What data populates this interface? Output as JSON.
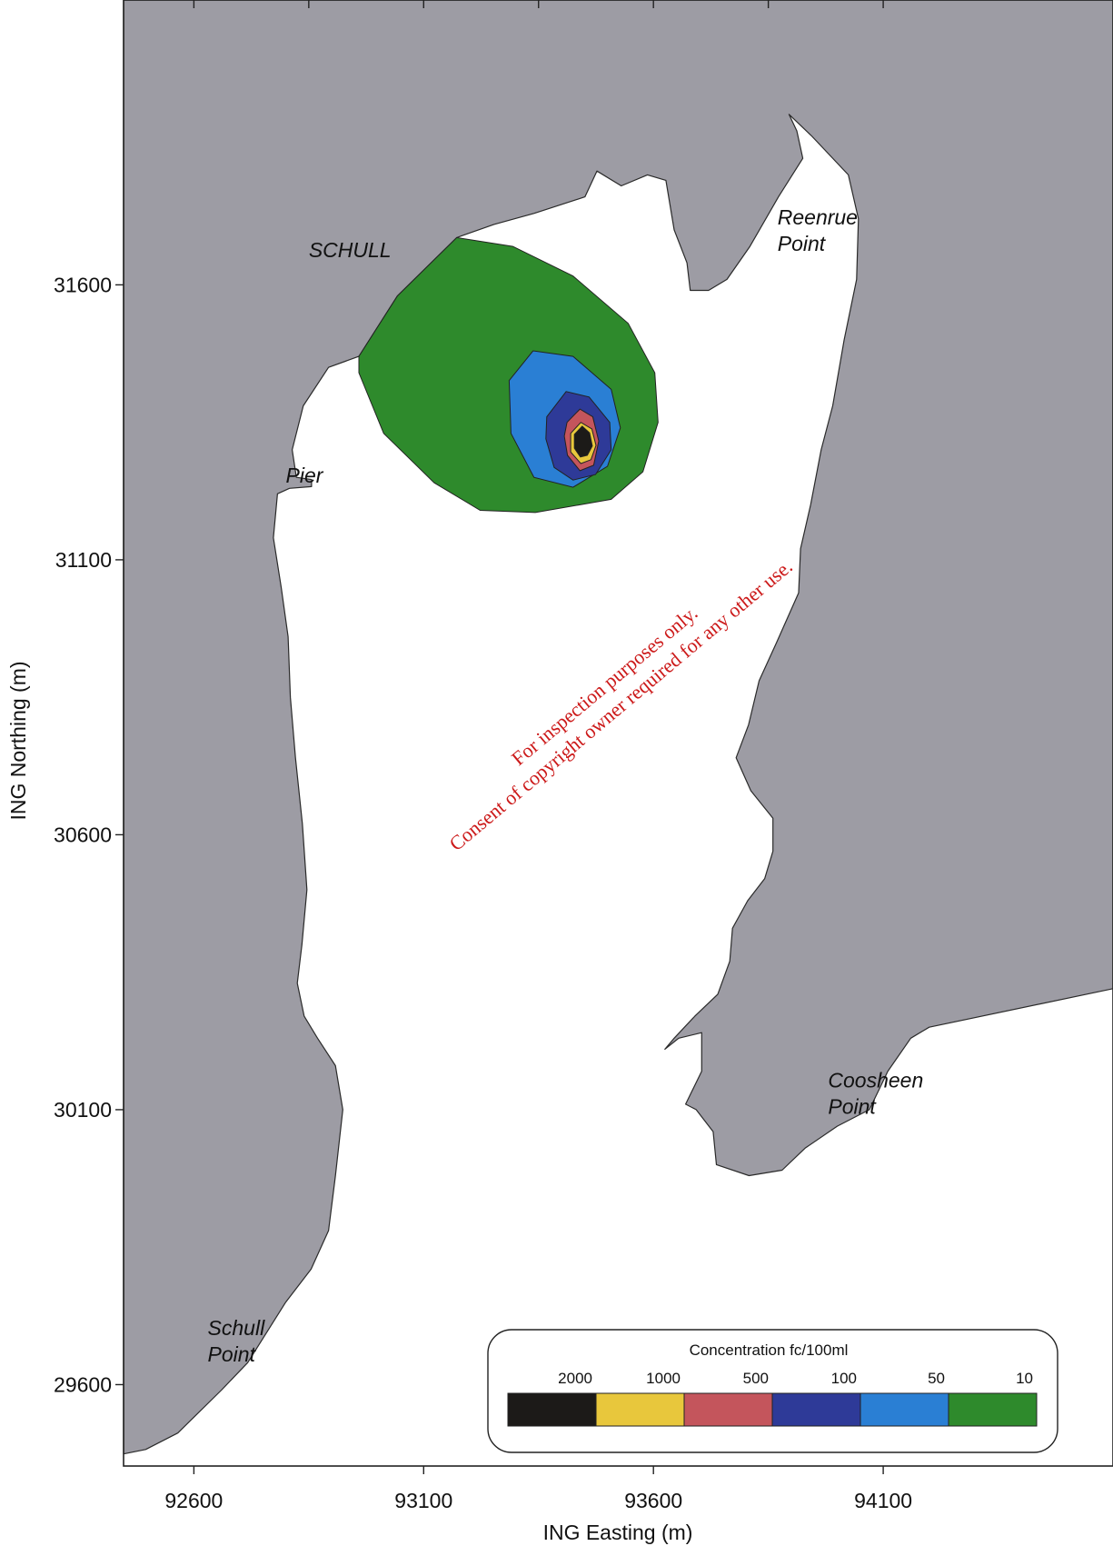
{
  "chart_data": {
    "type": "contour-map",
    "xlabel": "ING Easting (m)",
    "ylabel": "ING Northing (m)",
    "x_ticks": [
      92600,
      93100,
      93600,
      94100
    ],
    "y_ticks": [
      31600,
      31100,
      30600,
      30100,
      29600
    ],
    "x_tick_labels": [
      "92600",
      "93100",
      "93600",
      "94100"
    ],
    "y_tick_labels": [
      "31600",
      "31100",
      "30600",
      "30100",
      "29600"
    ],
    "xlim": [
      92447,
      94600
    ],
    "ylim": [
      29452,
      32118
    ],
    "land_color": "#9d9ca4",
    "water_color": "#ffffff",
    "places": [
      {
        "lines": [
          "SCHULL"
        ],
        "x": 92850,
        "y": 31650
      },
      {
        "lines": [
          "Reenrue",
          "Point"
        ],
        "x": 93870,
        "y": 31710
      },
      {
        "lines": [
          "Pier"
        ],
        "x": 92800,
        "y": 31240
      },
      {
        "lines": [
          "Coosheen",
          "Point"
        ],
        "x": 93980,
        "y": 30140
      },
      {
        "lines": [
          "Schull",
          "Point"
        ],
        "x": 92630,
        "y": 29690
      }
    ],
    "legend": {
      "title": "Concentration fc/100ml",
      "levels": [
        {
          "label": "2000",
          "color": "#1c1a18"
        },
        {
          "label": "1000",
          "color": "#e8c73c"
        },
        {
          "label": "500",
          "color": "#c4555c"
        },
        {
          "label": "100",
          "color": "#2e3a98"
        },
        {
          "label": "50",
          "color": "#2a7fd4"
        },
        {
          "label": "10",
          "color": "#2e8a2c"
        }
      ]
    },
    "contours": [
      {
        "level": "10",
        "color": "#2e8a2c",
        "points": [
          [
            92959,
            31470
          ],
          [
            93043,
            31580
          ],
          [
            93172,
            31686
          ],
          [
            93294,
            31670
          ],
          [
            93425,
            31616
          ],
          [
            93545,
            31530
          ],
          [
            93603,
            31440
          ],
          [
            93610,
            31350
          ],
          [
            93577,
            31260
          ],
          [
            93508,
            31210
          ],
          [
            93343,
            31186
          ],
          [
            93223,
            31190
          ],
          [
            93123,
            31240
          ],
          [
            93013,
            31330
          ],
          [
            92959,
            31440
          ]
        ]
      },
      {
        "level": "50",
        "color": "#2a7fd4",
        "points": [
          [
            93286,
            31426
          ],
          [
            93338,
            31480
          ],
          [
            93425,
            31470
          ],
          [
            93508,
            31410
          ],
          [
            93528,
            31340
          ],
          [
            93500,
            31270
          ],
          [
            93425,
            31232
          ],
          [
            93340,
            31250
          ],
          [
            93290,
            31330
          ]
        ]
      },
      {
        "level": "100",
        "color": "#2e3a98",
        "points": [
          [
            93368,
            31360
          ],
          [
            93410,
            31406
          ],
          [
            93460,
            31396
          ],
          [
            93505,
            31350
          ],
          [
            93508,
            31300
          ],
          [
            93474,
            31255
          ],
          [
            93425,
            31245
          ],
          [
            93384,
            31268
          ],
          [
            93366,
            31320
          ]
        ]
      },
      {
        "level": "500",
        "color": "#c4555c",
        "points": [
          [
            93412,
            31350
          ],
          [
            93440,
            31374
          ],
          [
            93468,
            31360
          ],
          [
            93481,
            31316
          ],
          [
            93470,
            31272
          ],
          [
            93440,
            31262
          ],
          [
            93413,
            31290
          ],
          [
            93406,
            31325
          ]
        ]
      },
      {
        "level": "1000",
        "color": "#e8c73c",
        "points": [
          [
            93420,
            31330
          ],
          [
            93442,
            31350
          ],
          [
            93466,
            31338
          ],
          [
            93475,
            31308
          ],
          [
            93464,
            31282
          ],
          [
            93442,
            31275
          ],
          [
            93420,
            31296
          ]
        ]
      },
      {
        "level": "2000",
        "color": "#1c1a18",
        "points": [
          [
            93428,
            31328
          ],
          [
            93445,
            31343
          ],
          [
            93461,
            31331
          ],
          [
            93467,
            31307
          ],
          [
            93456,
            31290
          ],
          [
            93441,
            31287
          ],
          [
            93428,
            31303
          ]
        ]
      }
    ],
    "land": [
      {
        "name": "west-shore",
        "points": [
          [
            92447,
            32118
          ],
          [
            92447,
            29474
          ],
          [
            92495,
            29482
          ],
          [
            92565,
            29512
          ],
          [
            92660,
            29590
          ],
          [
            92717,
            29640
          ],
          [
            92800,
            29750
          ],
          [
            92855,
            29810
          ],
          [
            92893,
            29880
          ],
          [
            92908,
            29980
          ],
          [
            92924,
            30100
          ],
          [
            92908,
            30180
          ],
          [
            92869,
            30230
          ],
          [
            92840,
            30270
          ],
          [
            92825,
            30330
          ],
          [
            92835,
            30400
          ],
          [
            92846,
            30500
          ],
          [
            92836,
            30620
          ],
          [
            92821,
            30740
          ],
          [
            92810,
            30850
          ],
          [
            92805,
            30960
          ],
          [
            92790,
            31050
          ],
          [
            92773,
            31140
          ],
          [
            92782,
            31220
          ],
          [
            92808,
            31230
          ],
          [
            92856,
            31233
          ],
          [
            92856,
            31246
          ],
          [
            92823,
            31250
          ],
          [
            92814,
            31300
          ],
          [
            92838,
            31380
          ],
          [
            92893,
            31450
          ],
          [
            92959,
            31470
          ],
          [
            93043,
            31580
          ],
          [
            93172,
            31686
          ],
          [
            93253,
            31710
          ],
          [
            93340,
            31730
          ],
          [
            93451,
            31760
          ],
          [
            93477,
            31807
          ],
          [
            93530,
            31780
          ],
          [
            93587,
            31800
          ],
          [
            93627,
            31790
          ],
          [
            93645,
            31700
          ],
          [
            93673,
            31640
          ],
          [
            93680,
            31590
          ],
          [
            93720,
            31590
          ],
          [
            93760,
            31610
          ],
          [
            93810,
            31670
          ],
          [
            93872,
            31760
          ],
          [
            93925,
            31830
          ],
          [
            93912,
            31880
          ],
          [
            93895,
            31910
          ],
          [
            93945,
            31870
          ],
          [
            94024,
            31800
          ],
          [
            94046,
            31720
          ],
          [
            94042,
            31610
          ],
          [
            94015,
            31500
          ],
          [
            93990,
            31380
          ],
          [
            93965,
            31300
          ],
          [
            93942,
            31200
          ],
          [
            93920,
            31120
          ],
          [
            93916,
            31040
          ],
          [
            93868,
            30950
          ],
          [
            93830,
            30880
          ],
          [
            93807,
            30800
          ],
          [
            93780,
            30740
          ],
          [
            93812,
            30680
          ],
          [
            93860,
            30630
          ],
          [
            93860,
            30570
          ],
          [
            93842,
            30520
          ],
          [
            93805,
            30480
          ],
          [
            93772,
            30430
          ],
          [
            93766,
            30370
          ],
          [
            93740,
            30310
          ],
          [
            93690,
            30270
          ],
          [
            93645,
            30230
          ],
          [
            93625,
            30210
          ],
          [
            93655,
            30230
          ],
          [
            93705,
            30240
          ],
          [
            93705,
            30170
          ],
          [
            93670,
            30110
          ],
          [
            93693,
            30100
          ],
          [
            93730,
            30060
          ],
          [
            93737,
            30000
          ],
          [
            93808,
            29980
          ],
          [
            93880,
            29990
          ],
          [
            93930,
            30030
          ],
          [
            94000,
            30070
          ],
          [
            94070,
            30100
          ],
          [
            94110,
            30170
          ],
          [
            94160,
            30230
          ],
          [
            94200,
            30250
          ],
          [
            94600,
            30320
          ],
          [
            94600,
            32118
          ]
        ]
      }
    ]
  }
}
